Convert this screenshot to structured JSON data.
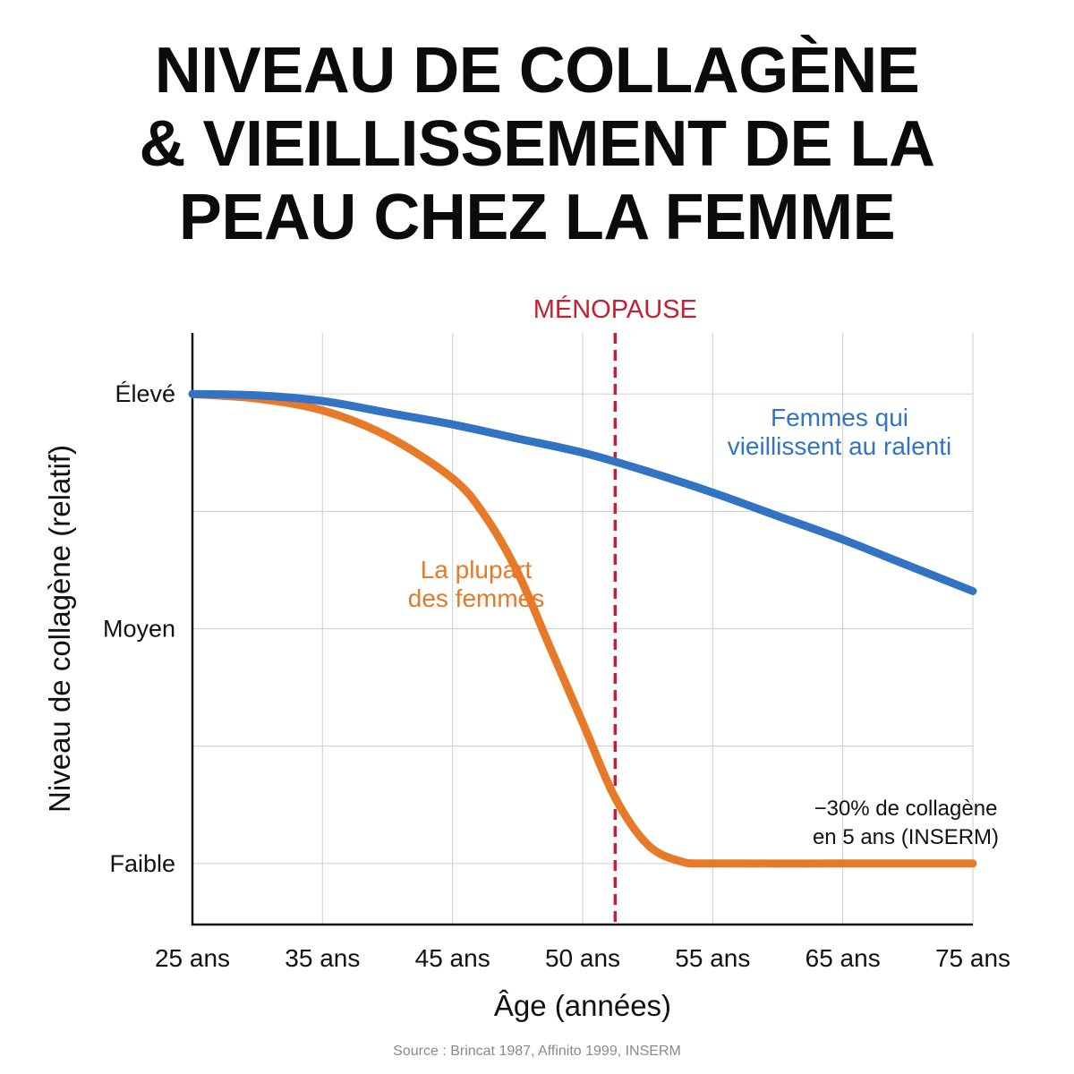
{
  "title": [
    "NIVEAU DE COLLAGÈNE",
    "& VIEILLISSEMENT DE LA",
    "PEAU CHEZ LA FEMME"
  ],
  "source": "Source : Brincat 1987, Affinito 1999, INSERM",
  "chart_data": {
    "type": "line",
    "xlabel": "Âge (années)",
    "ylabel": "Niveau de collagène (relatif)",
    "categories": [
      "25 ans",
      "35 ans",
      "45 ans",
      "50 ans",
      "55 ans",
      "65 ans",
      "75 ans"
    ],
    "y_ticks": [
      {
        "label": "Faible",
        "value": 0
      },
      {
        "label": "Moyen",
        "value": 0.5
      },
      {
        "label": "Élevé",
        "value": 1
      }
    ],
    "ylim": [
      -0.13,
      1.13
    ],
    "grid": true,
    "series": [
      {
        "name": "Femmes qui vieillissent au ralenti",
        "label_lines": [
          "Femmes qui",
          "vieillissent au ralenti"
        ],
        "color": "#3273c4",
        "points": [
          [
            0,
            1.0
          ],
          [
            0.5,
            0.997
          ],
          [
            1,
            0.985
          ],
          [
            1.5,
            0.96
          ],
          [
            2,
            0.935
          ],
          [
            2.5,
            0.905
          ],
          [
            3,
            0.875
          ],
          [
            3.5,
            0.835
          ],
          [
            4,
            0.79
          ],
          [
            4.5,
            0.74
          ],
          [
            5,
            0.69
          ],
          [
            5.5,
            0.635
          ],
          [
            6,
            0.58
          ]
        ]
      },
      {
        "name": "La plupart des femmes",
        "label_lines": [
          "La plupart",
          "des femmes"
        ],
        "color": "#e67a28",
        "points": [
          [
            0,
            1.0
          ],
          [
            0.5,
            0.99
          ],
          [
            1,
            0.965
          ],
          [
            1.5,
            0.91
          ],
          [
            2,
            0.82
          ],
          [
            2.25,
            0.74
          ],
          [
            2.5,
            0.62
          ],
          [
            2.75,
            0.46
          ],
          [
            3,
            0.3
          ],
          [
            3.25,
            0.14
          ],
          [
            3.5,
            0.04
          ],
          [
            3.75,
            0.005
          ],
          [
            4,
            0.0
          ],
          [
            5,
            0.0
          ],
          [
            6,
            0.0
          ]
        ]
      }
    ],
    "annotations": [
      {
        "type": "vline",
        "x": 3.25,
        "label": "MÉNOPAUSE",
        "color": "#c81e32"
      },
      {
        "type": "text",
        "lines": [
          "−30% de collagène",
          "en 5 ans (INSERM)"
        ]
      }
    ]
  }
}
